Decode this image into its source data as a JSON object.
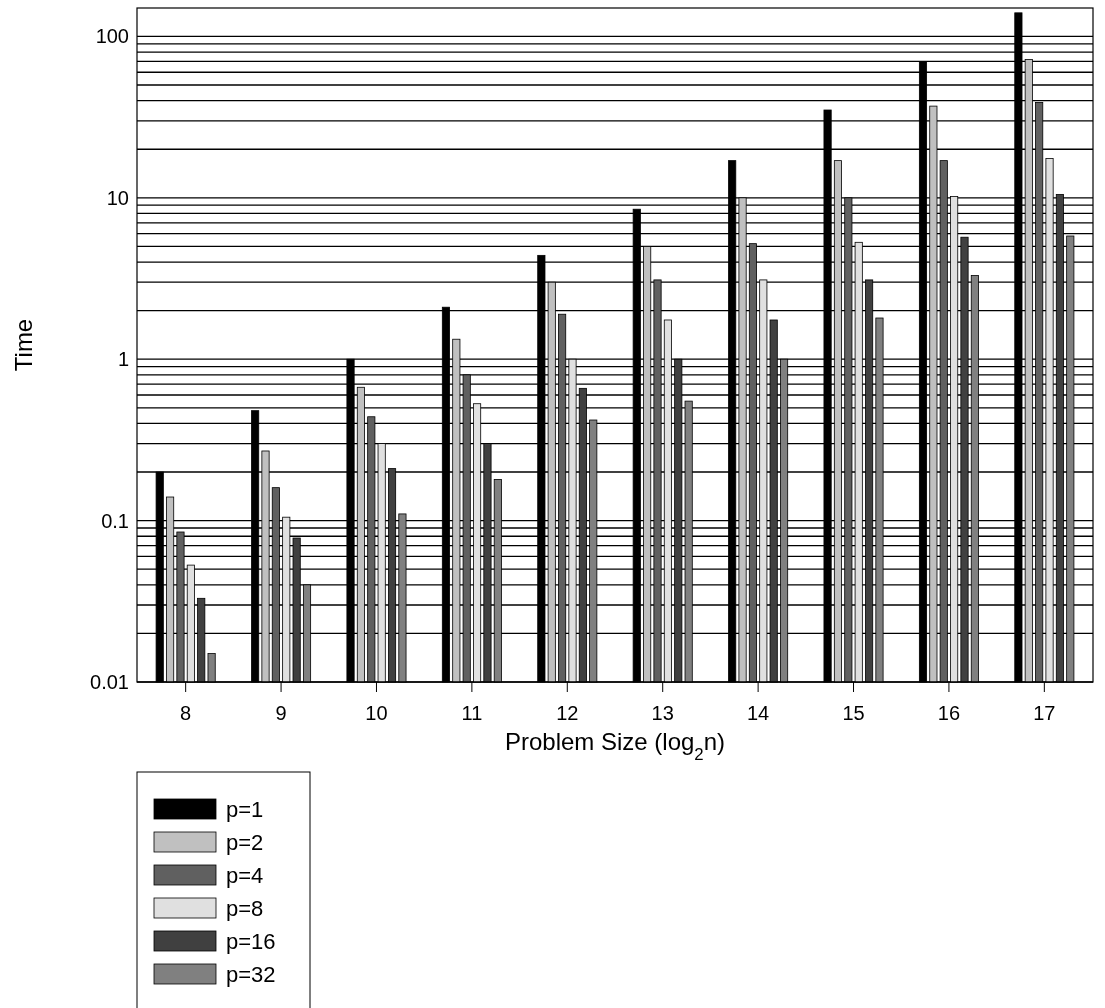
{
  "chart_data": {
    "type": "bar",
    "xlabel": "Problem Size (log$_{2}$n)",
    "ylabel": "Time",
    "categories": [
      "8",
      "9",
      "10",
      "11",
      "12",
      "13",
      "14",
      "15",
      "16",
      "17"
    ],
    "series": [
      {
        "name": "p=1",
        "color": "#000000",
        "values": [
          0.2,
          0.48,
          1.0,
          2.1,
          4.4,
          8.5,
          17,
          35,
          70,
          140
        ]
      },
      {
        "name": "p=2",
        "color": "#c0c0c0",
        "values": [
          0.14,
          0.27,
          0.67,
          1.33,
          3.0,
          5.0,
          10,
          17,
          37,
          72
        ]
      },
      {
        "name": "p=4",
        "color": "#606060",
        "values": [
          0.085,
          0.16,
          0.44,
          0.8,
          1.9,
          3.1,
          5.2,
          10,
          17,
          39
        ]
      },
      {
        "name": "p=8",
        "color": "#e0e0e0",
        "values": [
          0.053,
          0.105,
          0.3,
          0.53,
          1.0,
          1.75,
          3.1,
          5.3,
          10.2,
          17.5
        ]
      },
      {
        "name": "p=16",
        "color": "#404040",
        "values": [
          0.033,
          0.078,
          0.21,
          0.3,
          0.66,
          1.0,
          1.75,
          3.1,
          5.7,
          10.5
        ]
      },
      {
        "name": "p=32",
        "color": "#808080",
        "values": [
          0.015,
          0.04,
          0.11,
          0.18,
          0.42,
          0.55,
          1.0,
          1.8,
          3.3,
          5.8
        ]
      }
    ],
    "log": true,
    "ylim": [
      0.01,
      150
    ],
    "yticks": [
      0.01,
      {
        "value": 0.02,
        "label": null
      },
      {
        "value": 0.03,
        "label": null
      },
      {
        "value": 0.04,
        "label": null
      },
      {
        "value": 0.05,
        "label": null
      },
      {
        "value": 0.06,
        "label": null
      },
      {
        "value": 0.07,
        "label": null
      },
      {
        "value": 0.08,
        "label": null
      },
      {
        "value": 0.09,
        "label": null
      },
      0.1,
      {
        "value": 0.2,
        "label": null
      },
      {
        "value": 0.3,
        "label": null
      },
      {
        "value": 0.4,
        "label": null
      },
      {
        "value": 0.5,
        "label": null
      },
      {
        "value": 0.6,
        "label": null
      },
      {
        "value": 0.7,
        "label": null
      },
      {
        "value": 0.8,
        "label": null
      },
      {
        "value": 0.9,
        "label": null
      },
      1,
      {
        "value": 2,
        "label": null
      },
      {
        "value": 3,
        "label": null
      },
      {
        "value": 4,
        "label": null
      },
      {
        "value": 5,
        "label": null
      },
      {
        "value": 6,
        "label": null
      },
      {
        "value": 7,
        "label": null
      },
      {
        "value": 8,
        "label": null
      },
      {
        "value": 9,
        "label": null
      },
      10,
      {
        "value": 20,
        "label": null
      },
      {
        "value": 30,
        "label": null
      },
      {
        "value": 40,
        "label": null
      },
      {
        "value": 50,
        "label": null
      },
      {
        "value": 60,
        "label": null
      },
      {
        "value": 70,
        "label": null
      },
      {
        "value": 80,
        "label": null
      },
      {
        "value": 90,
        "label": null
      },
      100
    ],
    "grid": "y",
    "legend": "bottom left"
  }
}
